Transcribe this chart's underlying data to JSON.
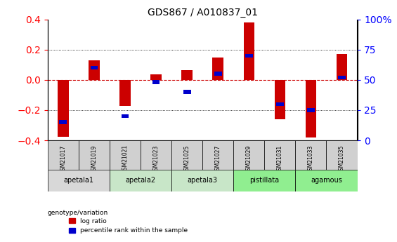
{
  "title": "GDS867 / A010837_01",
  "samples": [
    "GSM21017",
    "GSM21019",
    "GSM21021",
    "GSM21023",
    "GSM21025",
    "GSM21027",
    "GSM21029",
    "GSM21031",
    "GSM21033",
    "GSM21035"
  ],
  "log_ratio": [
    -0.375,
    0.13,
    -0.17,
    0.035,
    0.065,
    0.15,
    0.38,
    -0.26,
    -0.38,
    0.17
  ],
  "percentile_rank": [
    15,
    60,
    20,
    48,
    40,
    55,
    70,
    30,
    25,
    52
  ],
  "groups": [
    {
      "label": "apetala1",
      "indices": [
        0,
        1
      ],
      "color": "#d8d8d8"
    },
    {
      "label": "apetala2",
      "indices": [
        2,
        3
      ],
      "color": "#c8e6c8"
    },
    {
      "label": "apetala3",
      "indices": [
        4,
        5
      ],
      "color": "#c8e6c8"
    },
    {
      "label": "pistillata",
      "indices": [
        6,
        7
      ],
      "color": "#90ee90"
    },
    {
      "label": "agamous",
      "indices": [
        8,
        9
      ],
      "color": "#90ee90"
    }
  ],
  "ylim_left": [
    -0.4,
    0.4
  ],
  "ylim_right": [
    0,
    100
  ],
  "bar_color_red": "#cc0000",
  "bar_color_blue": "#0000cc",
  "hline_color": "#cc0000",
  "grid_color": "#000000",
  "background_color": "#ffffff",
  "bar_width": 0.35
}
